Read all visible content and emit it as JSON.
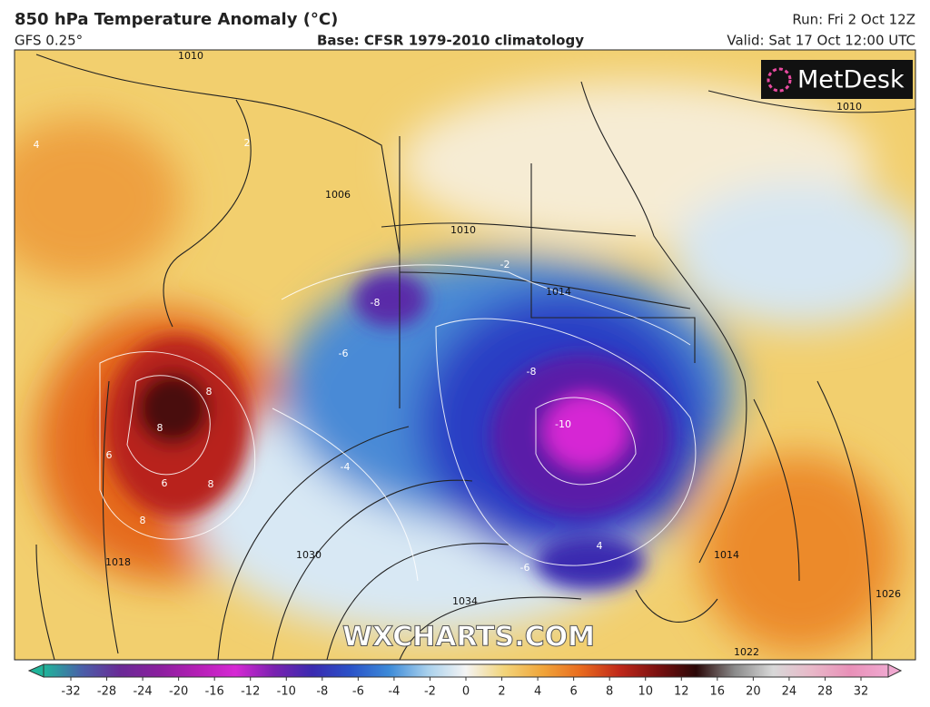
{
  "header": {
    "title": "850 hPa Temperature Anomaly (°C)",
    "model": "GFS 0.25°",
    "base": "Base: CFSR 1979-2010 climatology",
    "run": "Run: Fri 2 Oct 12Z",
    "valid": "Valid: Sat 17 Oct 12:00 UTC"
  },
  "logo": "MetDesk",
  "watermark": "WXCHARTS.COM",
  "contour_labels": [
    "1010",
    "1006",
    "1010",
    "1014",
    "1010",
    "1030",
    "1034",
    "1022",
    "1026",
    "1014",
    "1018",
    "8",
    "8",
    "6",
    "6",
    "8",
    "8",
    "-8",
    "-6",
    "-8",
    "-10",
    "-6",
    "-4",
    "4",
    "2",
    "-2",
    "4"
  ],
  "colorbar": {
    "ticks": [
      -32,
      -28,
      -24,
      -20,
      -16,
      -12,
      -10,
      -8,
      -6,
      -4,
      -2,
      0,
      2,
      4,
      6,
      8,
      10,
      12,
      16,
      20,
      24,
      28,
      32
    ],
    "colors": [
      "#1fb59a",
      "#4a5fa8",
      "#6a2a96",
      "#8a1f9e",
      "#b41fb5",
      "#d628d4",
      "#7a22b0",
      "#3a2ab0",
      "#2a52c8",
      "#3c8ad8",
      "#a8d0ec",
      "#f4f4f4",
      "#f2d47a",
      "#f0a53a",
      "#e86a1e",
      "#c0281a",
      "#7a1010",
      "#2a0808",
      "#8a8a8a",
      "#d8d8d8",
      "#e8b8c8",
      "#e890b8",
      "#f0a8d0"
    ]
  }
}
